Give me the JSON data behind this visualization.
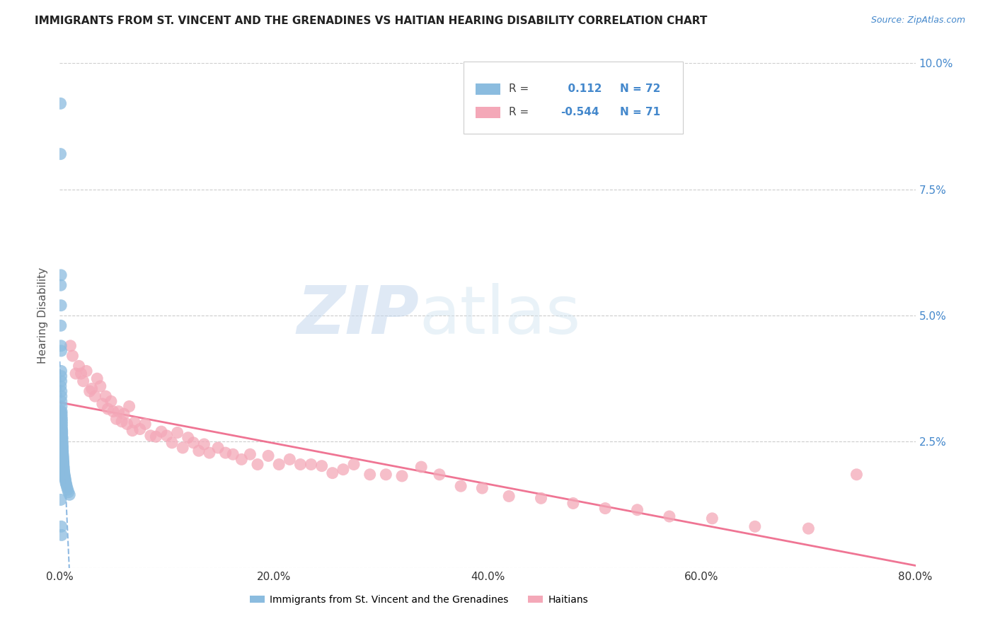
{
  "title": "IMMIGRANTS FROM ST. VINCENT AND THE GRENADINES VS HAITIAN HEARING DISABILITY CORRELATION CHART",
  "source": "Source: ZipAtlas.com",
  "ylabel": "Hearing Disability",
  "r_blue": 0.112,
  "n_blue": 72,
  "r_pink": -0.544,
  "n_pink": 71,
  "blue_scatter_x": [
    0.0008,
    0.0008,
    0.001,
    0.001,
    0.001,
    0.001,
    0.0012,
    0.0012,
    0.0012,
    0.0014,
    0.0014,
    0.0015,
    0.0015,
    0.0016,
    0.0016,
    0.0016,
    0.0017,
    0.0018,
    0.0018,
    0.0018,
    0.002,
    0.002,
    0.002,
    0.002,
    0.002,
    0.0022,
    0.0022,
    0.0022,
    0.0022,
    0.0024,
    0.0024,
    0.0024,
    0.0025,
    0.0025,
    0.0025,
    0.0026,
    0.0026,
    0.0026,
    0.0028,
    0.0028,
    0.0028,
    0.003,
    0.003,
    0.003,
    0.0032,
    0.0032,
    0.0033,
    0.0034,
    0.0035,
    0.0035,
    0.0036,
    0.0036,
    0.0038,
    0.0038,
    0.004,
    0.004,
    0.0042,
    0.0044,
    0.0046,
    0.0048,
    0.005,
    0.0052,
    0.0055,
    0.0058,
    0.0062,
    0.0068,
    0.0075,
    0.0082,
    0.0092,
    0.001,
    0.0015,
    0.0018
  ],
  "blue_scatter_y": [
    0.092,
    0.082,
    0.056,
    0.048,
    0.036,
    0.031,
    0.058,
    0.052,
    0.044,
    0.043,
    0.039,
    0.038,
    0.037,
    0.035,
    0.034,
    0.033,
    0.032,
    0.031,
    0.0305,
    0.03,
    0.0295,
    0.029,
    0.0285,
    0.028,
    0.0275,
    0.0272,
    0.0268,
    0.0265,
    0.026,
    0.0258,
    0.0255,
    0.025,
    0.0248,
    0.0245,
    0.0242,
    0.024,
    0.0238,
    0.0235,
    0.0232,
    0.023,
    0.0228,
    0.0225,
    0.0222,
    0.022,
    0.0218,
    0.0215,
    0.0212,
    0.021,
    0.0208,
    0.0205,
    0.0202,
    0.02,
    0.0198,
    0.0195,
    0.0192,
    0.019,
    0.0188,
    0.0185,
    0.0182,
    0.018,
    0.0178,
    0.0175,
    0.0172,
    0.0168,
    0.0165,
    0.016,
    0.0155,
    0.015,
    0.0145,
    0.0135,
    0.0082,
    0.0065
  ],
  "pink_scatter_x": [
    0.01,
    0.012,
    0.015,
    0.018,
    0.02,
    0.022,
    0.025,
    0.028,
    0.03,
    0.033,
    0.035,
    0.038,
    0.04,
    0.043,
    0.045,
    0.048,
    0.05,
    0.053,
    0.055,
    0.058,
    0.06,
    0.063,
    0.065,
    0.068,
    0.07,
    0.075,
    0.08,
    0.085,
    0.09,
    0.095,
    0.1,
    0.105,
    0.11,
    0.115,
    0.12,
    0.125,
    0.13,
    0.135,
    0.14,
    0.148,
    0.155,
    0.162,
    0.17,
    0.178,
    0.185,
    0.195,
    0.205,
    0.215,
    0.225,
    0.235,
    0.245,
    0.255,
    0.265,
    0.275,
    0.29,
    0.305,
    0.32,
    0.338,
    0.355,
    0.375,
    0.395,
    0.42,
    0.45,
    0.48,
    0.51,
    0.54,
    0.57,
    0.61,
    0.65,
    0.7,
    0.745
  ],
  "pink_scatter_y": [
    0.044,
    0.042,
    0.0385,
    0.04,
    0.0385,
    0.037,
    0.039,
    0.035,
    0.0355,
    0.034,
    0.0375,
    0.036,
    0.0325,
    0.034,
    0.0315,
    0.033,
    0.031,
    0.0295,
    0.031,
    0.029,
    0.0305,
    0.0285,
    0.032,
    0.0272,
    0.0288,
    0.0275,
    0.0285,
    0.0262,
    0.026,
    0.027,
    0.0262,
    0.0248,
    0.0268,
    0.0238,
    0.0258,
    0.0248,
    0.0232,
    0.0245,
    0.0228,
    0.0238,
    0.0228,
    0.0225,
    0.0215,
    0.0225,
    0.0205,
    0.0222,
    0.0205,
    0.0215,
    0.0205,
    0.0205,
    0.0202,
    0.0188,
    0.0195,
    0.0205,
    0.0185,
    0.0185,
    0.0182,
    0.02,
    0.0185,
    0.0162,
    0.0158,
    0.0142,
    0.0138,
    0.0128,
    0.0118,
    0.0115,
    0.0102,
    0.0098,
    0.0082,
    0.0078,
    0.0185
  ],
  "blue_color": "#8bbcdf",
  "pink_color": "#f4a8b8",
  "blue_line_color": "#7aaddd",
  "pink_line_color": "#ee6688",
  "background_color": "#ffffff",
  "grid_color": "#cccccc",
  "xlim": [
    0.0,
    0.8
  ],
  "ylim": [
    0.0,
    0.1
  ],
  "xticks": [
    0.0,
    0.1,
    0.2,
    0.3,
    0.4,
    0.5,
    0.6,
    0.7,
    0.8
  ],
  "xtick_labels": [
    "0.0%",
    "",
    "20.0%",
    "",
    "40.0%",
    "",
    "60.0%",
    "",
    "80.0%"
  ],
  "yticks": [
    0.0,
    0.025,
    0.05,
    0.075,
    0.1
  ],
  "ytick_labels": [
    "",
    "2.5%",
    "5.0%",
    "7.5%",
    "10.0%"
  ],
  "watermark_zip": "ZIP",
  "watermark_atlas": "atlas",
  "legend_r_color": "#4488cc",
  "legend_n_color": "#4488cc",
  "title_color": "#222222",
  "source_color": "#4488cc",
  "ylabel_color": "#555555"
}
